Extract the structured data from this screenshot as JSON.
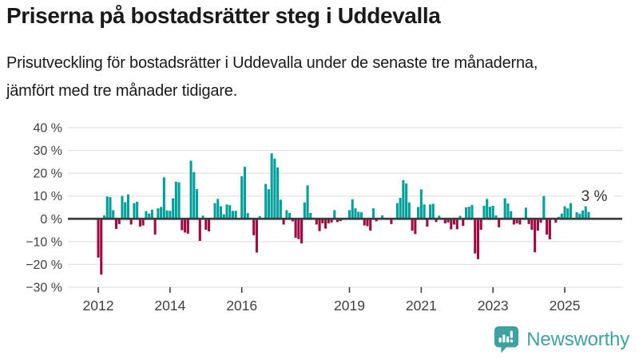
{
  "header": {
    "title": "Priserna på bostadsrätter steg i Uddevalla",
    "subtitle": "Prisutveckling för bostadsrätter i Uddevalla under de senaste tre månaderna, jämfört med tre månader tidigare."
  },
  "footer": {
    "brand": "Newsworthy",
    "logo_icon": "bar-chart-speech-bubble-icon"
  },
  "colors": {
    "positive": "#009f9b",
    "negative": "#9e0b44",
    "grid": "#e2e2e2",
    "axis": "#3d3d3d",
    "text": "#404040",
    "annotation": "#333333",
    "brand": "#3fa2a1"
  },
  "chart_data": {
    "type": "bar",
    "title": "Priserna på bostadsrätter steg i Uddevalla",
    "xlabel": "",
    "ylabel": "",
    "unit": "%",
    "frequency": "monthly",
    "start_month": "2012-01",
    "end_month": "2025-09",
    "ylim": [
      -30,
      40
    ],
    "grid": true,
    "y_ticks": [
      40,
      30,
      20,
      10,
      0,
      -10,
      -20,
      -30
    ],
    "y_tick_suffix": " %",
    "x_tick_years": [
      2012,
      2014,
      2016,
      2019,
      2021,
      2023,
      2025
    ],
    "x_tick_labels": [
      "2012",
      "2014",
      "2016",
      "2019",
      "2021",
      "2023",
      "2025"
    ],
    "annotation": {
      "text": "3 %",
      "value": 3,
      "at_y": 10
    },
    "values": [
      -17,
      -24.5,
      1.5,
      9.8,
      9.5,
      3.8,
      -4.4,
      -2.3,
      10,
      7.3,
      10.7,
      -2.5,
      6.9,
      7.5,
      -3.4,
      -2.9,
      3.4,
      2.3,
      4,
      -6.9,
      4.6,
      5.2,
      18.2,
      3.7,
      3.5,
      9,
      16.3,
      16,
      -5,
      -6,
      -6.5,
      25.5,
      20.5,
      13,
      -9.7,
      1.4,
      -4.8,
      -5.5,
      0,
      6.9,
      8.7,
      5.5,
      2,
      6.3,
      6,
      3.5,
      3.5,
      0,
      18.7,
      22.8,
      2.5,
      0,
      -7.2,
      -14.8,
      1.2,
      0,
      15.3,
      13,
      28.7,
      26.4,
      22.5,
      8.4,
      -2.5,
      3.8,
      2.6,
      -1.1,
      -8.3,
      -8.9,
      -10.8,
      7.2,
      14.7,
      2.6,
      0,
      -2.5,
      -5.4,
      -2,
      -4.3,
      -2,
      -1.6,
      3.8,
      -1.4,
      -1,
      0,
      0,
      3.8,
      8.6,
      4.6,
      3.1,
      2.9,
      -2.9,
      -3.2,
      -5.2,
      4.6,
      -1.1,
      0,
      1.5,
      0,
      0,
      -2.3,
      0,
      6.9,
      9.2,
      17,
      15.5,
      7.2,
      -5.2,
      -6.7,
      5.2,
      12.9,
      6.3,
      -3.4,
      6.3,
      6.6,
      -1.4,
      1.4,
      0,
      -2,
      -1.6,
      -4.6,
      -2.5,
      -4.6,
      1.3,
      -3.1,
      5,
      5.3,
      6.1,
      -15.2,
      -17.7,
      -4.8,
      5.7,
      8.7,
      5.3,
      5.7,
      1.5,
      -3.7,
      0,
      9,
      6.7,
      3.4,
      -2.5,
      -2,
      -2.5,
      0,
      4.9,
      -2.3,
      -4.8,
      -14.7,
      -5.2,
      -1.7,
      10,
      -6.9,
      -9,
      0,
      -1.7,
      0.9,
      2.3,
      5.5,
      4.6,
      6.9,
      0,
      2.9,
      2.3,
      3.7,
      5.5,
      3
    ]
  }
}
